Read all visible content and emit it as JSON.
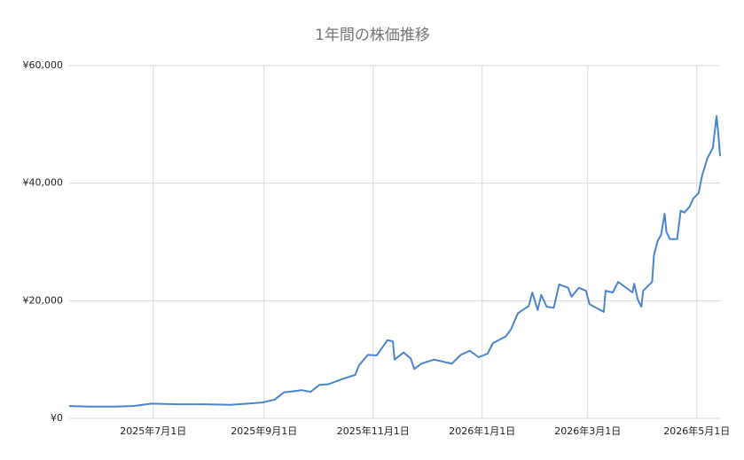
{
  "chart_data": {
    "type": "line",
    "title": "1年間の株価推移",
    "x": [
      "2025-05-15",
      "2025-05-26",
      "2025-06-10",
      "2025-06-20",
      "2025-06-30",
      "2025-07-15",
      "2025-07-29",
      "2025-08-13",
      "2025-08-23",
      "2025-08-31",
      "2025-09-07",
      "2025-09-12",
      "2025-09-22",
      "2025-09-27",
      "2025-10-02",
      "2025-10-07",
      "2025-10-14",
      "2025-10-22",
      "2025-10-24",
      "2025-10-29",
      "2025-11-03",
      "2025-11-06",
      "2025-11-09",
      "2025-11-12",
      "2025-11-13",
      "2025-11-18",
      "2025-11-22",
      "2025-11-24",
      "2025-11-28",
      "2025-12-05",
      "2025-12-15",
      "2025-12-20",
      "2025-12-25",
      "2025-12-30",
      "2026-01-04",
      "2026-01-07",
      "2026-01-14",
      "2026-01-17",
      "2026-01-21",
      "2026-01-27",
      "2026-01-29",
      "2026-02-01",
      "2026-02-03",
      "2026-02-06",
      "2026-02-10",
      "2026-02-13",
      "2026-02-18",
      "2026-02-20",
      "2026-02-24",
      "2026-02-28",
      "2026-03-02",
      "2026-03-10",
      "2026-03-11",
      "2026-03-15",
      "2026-03-18",
      "2026-03-26",
      "2026-03-27",
      "2026-03-29",
      "2026-03-31",
      "2026-04-01",
      "2026-04-06",
      "2026-04-07",
      "2026-04-09",
      "2026-04-11",
      "2026-04-13",
      "2026-04-14",
      "2026-04-16",
      "2026-04-20",
      "2026-04-22",
      "2026-04-24",
      "2026-04-27",
      "2026-04-29",
      "2026-05-02",
      "2026-05-04",
      "2026-05-07",
      "2026-05-10",
      "2026-05-12",
      "2026-05-13",
      "2026-05-14"
    ],
    "series": [
      {
        "name": "株価",
        "color": "#4a86cf",
        "values": [
          2100,
          2000,
          2000,
          2100,
          2500,
          2400,
          2400,
          2300,
          2500,
          2700,
          3200,
          4400,
          4800,
          4500,
          5700,
          5800,
          6600,
          7400,
          9000,
          10800,
          10700,
          12000,
          13300,
          13100,
          10000,
          11200,
          10200,
          8400,
          9300,
          10000,
          9300,
          10800,
          11500,
          10400,
          11000,
          12800,
          13900,
          15100,
          17900,
          19100,
          21400,
          18400,
          21000,
          19000,
          18800,
          22800,
          22200,
          20700,
          22200,
          21700,
          19400,
          18100,
          21700,
          21400,
          23200,
          21400,
          22900,
          20200,
          19000,
          21700,
          23200,
          27700,
          30100,
          31200,
          34800,
          31700,
          30500,
          30500,
          35300,
          35000,
          36000,
          37400,
          38300,
          41300,
          44300,
          46000,
          51400,
          48500,
          44600
        ]
      }
    ],
    "xlim": [
      "2025-05-15",
      "2026-05-14"
    ],
    "xticks": [
      {
        "value": "2025-07-01",
        "label": "2025年7月1日"
      },
      {
        "value": "2025-09-01",
        "label": "2025年9月1日"
      },
      {
        "value": "2025-11-01",
        "label": "2025年11月1日"
      },
      {
        "value": "2026-01-01",
        "label": "2026年1月1日"
      },
      {
        "value": "2026-03-01",
        "label": "2026年3月1日"
      },
      {
        "value": "2026-05-01",
        "label": "2026年5月1日"
      }
    ],
    "ylim": [
      0,
      60000
    ],
    "yticks": [
      {
        "value": 0,
        "label": "¥0"
      },
      {
        "value": 20000,
        "label": "¥20,000"
      },
      {
        "value": 40000,
        "label": "¥40,000"
      },
      {
        "value": 60000,
        "label": "¥60,000"
      }
    ],
    "grid": true
  }
}
